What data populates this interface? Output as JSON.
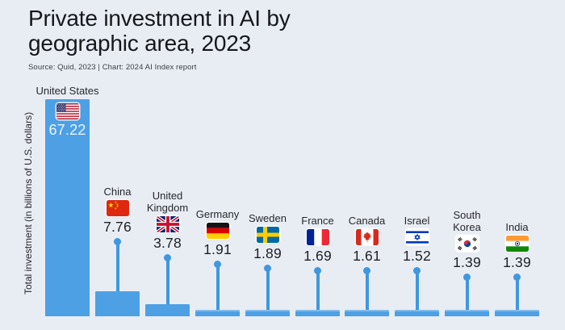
{
  "header": {
    "title_line1": "Private investment in AI by",
    "title_line2": "geographic area, 2023",
    "source": "Source: Quid, 2023 | Chart: 2024 AI Index report"
  },
  "y_axis_label": "Total investment (in billions of U.S. dollars)",
  "colors": {
    "background": "#e8edf4",
    "bar": "#4da0e4",
    "stem": "#3f97df",
    "title_text": "#16181c"
  },
  "chart_data": {
    "type": "bar",
    "title": "Private investment in AI by geographic area, 2023",
    "subtitle": "Source: Quid, 2023 | Chart: 2024 AI Index report",
    "xlabel": "",
    "ylabel": "Total investment (in billions of U.S. dollars)",
    "categories": [
      "United States",
      "China",
      "United Kingdom",
      "Germany",
      "Sweden",
      "France",
      "Canada",
      "Israel",
      "South Korea",
      "India"
    ],
    "values": [
      67.22,
      7.76,
      3.78,
      1.91,
      1.89,
      1.69,
      1.61,
      1.52,
      1.39,
      1.39
    ],
    "ylim": [
      0,
      67.22
    ],
    "grid": false,
    "legend": false,
    "bar_color": "#4da0e4",
    "value_labels_shown": true
  },
  "countries": [
    {
      "label": "United States",
      "label_lines": [
        "United States"
      ],
      "value_label": "67.22",
      "flag": "us-flag-icon"
    },
    {
      "label": "China",
      "label_lines": [
        "China"
      ],
      "value_label": "7.76",
      "flag": "china-flag-icon"
    },
    {
      "label": "United Kingdom",
      "label_lines": [
        "United",
        "Kingdom"
      ],
      "value_label": "3.78",
      "flag": "uk-flag-icon"
    },
    {
      "label": "Germany",
      "label_lines": [
        "Germany"
      ],
      "value_label": "1.91",
      "flag": "germany-flag-icon"
    },
    {
      "label": "Sweden",
      "label_lines": [
        "Sweden"
      ],
      "value_label": "1.89",
      "flag": "sweden-flag-icon"
    },
    {
      "label": "France",
      "label_lines": [
        "France"
      ],
      "value_label": "1.69",
      "flag": "france-flag-icon"
    },
    {
      "label": "Canada",
      "label_lines": [
        "Canada"
      ],
      "value_label": "1.61",
      "flag": "canada-flag-icon"
    },
    {
      "label": "Israel",
      "label_lines": [
        "Israel"
      ],
      "value_label": "1.52",
      "flag": "israel-flag-icon"
    },
    {
      "label": "South Korea",
      "label_lines": [
        "South",
        "Korea"
      ],
      "value_label": "1.39",
      "flag": "south-korea-flag-icon"
    },
    {
      "label": "India",
      "label_lines": [
        "India"
      ],
      "value_label": "1.39",
      "flag": "india-flag-icon"
    }
  ]
}
